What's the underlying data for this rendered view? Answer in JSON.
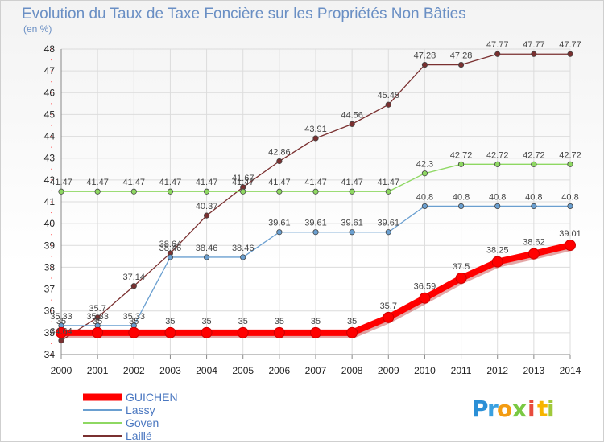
{
  "chart_data": {
    "type": "line",
    "title": "Evolution du Taux de Taxe Foncière sur les Propriétés Non Bâties",
    "ylabel": "(en %)",
    "xlabel": "",
    "ylim": [
      34,
      48
    ],
    "y_ticks": [
      34,
      35,
      36,
      37,
      38,
      39,
      40,
      41,
      42,
      43,
      44,
      45,
      46,
      47,
      48
    ],
    "categories": [
      "2000",
      "2001",
      "2002",
      "2003",
      "2004",
      "2005",
      "2006",
      "2007",
      "2008",
      "2009",
      "2010",
      "2011",
      "2012",
      "2013",
      "2014"
    ],
    "grid": true,
    "legend_position": "bottom-left",
    "series": [
      {
        "name": "Laillé",
        "color": "#7a3030",
        "values": [
          34.64,
          35.7,
          37.14,
          38.64,
          40.37,
          41.67,
          42.86,
          43.91,
          44.56,
          45.45,
          47.28,
          47.28,
          47.77,
          47.77,
          47.77
        ],
        "labels": [
          "34.64",
          "35.7",
          "37.14",
          "38.64",
          "40.37",
          "41.67",
          "42.86",
          "43.91",
          "44.56",
          "45.45",
          "47.28",
          "47.28",
          "47.77",
          "47.77",
          "47.77"
        ]
      },
      {
        "name": "Goven",
        "color": "#8ed862",
        "values": [
          41.47,
          41.47,
          41.47,
          41.47,
          41.47,
          41.47,
          41.47,
          41.47,
          41.47,
          41.47,
          42.3,
          42.72,
          42.72,
          42.72,
          42.72
        ],
        "labels": [
          "41.47",
          "41.47",
          "41.47",
          "41.47",
          "41.47",
          "41.47",
          "41.47",
          "41.47",
          "41.47",
          "41.47",
          "42.3",
          "42.72",
          "42.72",
          "42.72",
          "42.72"
        ]
      },
      {
        "name": "Lassy",
        "color": "#6a9fd0",
        "values": [
          35.33,
          35.33,
          35.33,
          38.46,
          38.46,
          38.46,
          39.61,
          39.61,
          39.61,
          39.61,
          40.8,
          40.8,
          40.8,
          40.8,
          40.8
        ],
        "labels": [
          "35.33",
          "35.33",
          "35.33",
          "38.46",
          "38.46",
          "38.46",
          "39.61",
          "39.61",
          "39.61",
          "39.61",
          "40.8",
          "40.8",
          "40.8",
          "40.8",
          "40.8"
        ]
      },
      {
        "name": "GUICHEN",
        "color": "#ff0000",
        "values": [
          35,
          35,
          35,
          35,
          35,
          35,
          35,
          35,
          35,
          35.7,
          36.59,
          37.5,
          38.25,
          38.62,
          39.01
        ],
        "labels": [
          "35",
          "35",
          "35",
          "35",
          "35",
          "35",
          "35",
          "35",
          "35",
          "35.7",
          "36.59",
          "37.5",
          "38.25",
          "38.62",
          "39.01"
        ]
      }
    ],
    "legend_order": [
      "GUICHEN",
      "Lassy",
      "Goven",
      "Laillé"
    ]
  },
  "brand": {
    "letters": [
      "P",
      "r",
      "o",
      "x",
      "i",
      "t",
      "i"
    ],
    "colors": [
      "#2b8fd6",
      "#3aa0e0",
      "#f39c12",
      "#7ac943",
      "#e84c3d",
      "#f7b500",
      "#a0c93a"
    ]
  },
  "colors": {
    "grid": "#dcdcdc",
    "axis": "#888888",
    "title": "#6a8fc4"
  }
}
